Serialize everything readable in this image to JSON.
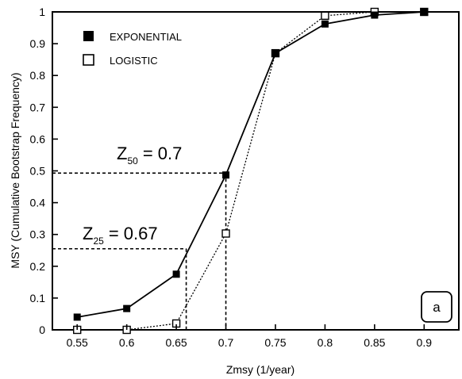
{
  "chart_data": {
    "type": "line",
    "title": "",
    "xlabel": "Zmsy (1/year)",
    "ylabel": "MSY (Cumulative Bootstrap Frequency)",
    "xlim": [
      0.525,
      0.935
    ],
    "ylim": [
      0,
      1
    ],
    "x_ticks": [
      "0.55",
      "0.6",
      "0.65",
      "0.7",
      "0.75",
      "0.8",
      "0.85",
      "0.9"
    ],
    "x_tick_values": [
      0.55,
      0.6,
      0.65,
      0.7,
      0.75,
      0.8,
      0.85,
      0.9
    ],
    "y_ticks": [
      "0",
      "0.1",
      "0.2",
      "0.3",
      "0.4",
      "0.5",
      "0.6",
      "0.7",
      "0.8",
      "0.9",
      "1"
    ],
    "y_tick_values": [
      0,
      0.1,
      0.2,
      0.3,
      0.4,
      0.5,
      0.6,
      0.7,
      0.8,
      0.9,
      1
    ],
    "grid": false,
    "legend_position": "top-left",
    "series": [
      {
        "name": "EXPONENTIAL",
        "marker": "filled-square",
        "line": "solid",
        "x": [
          0.55,
          0.6,
          0.65,
          0.7,
          0.75,
          0.8,
          0.85,
          0.9
        ],
        "y": [
          0.04,
          0.067,
          0.175,
          0.487,
          0.87,
          0.962,
          0.99,
          1.0
        ]
      },
      {
        "name": "LOGISTIC",
        "marker": "open-square",
        "line": "dotted",
        "x": [
          0.55,
          0.6,
          0.65,
          0.7,
          0.75,
          0.8,
          0.85,
          0.9
        ],
        "y": [
          0.0,
          0.0,
          0.02,
          0.303,
          0.87,
          0.988,
          1.0,
          1.0
        ]
      }
    ],
    "annotations": [
      {
        "main": "Z",
        "sub": "50",
        "value": "= 0.7",
        "x": 0.7,
        "y": 0.493
      },
      {
        "main": "Z",
        "sub": "25",
        "value": "= 0.67",
        "x": 0.66,
        "y": 0.255
      }
    ],
    "panel_label": "a"
  }
}
